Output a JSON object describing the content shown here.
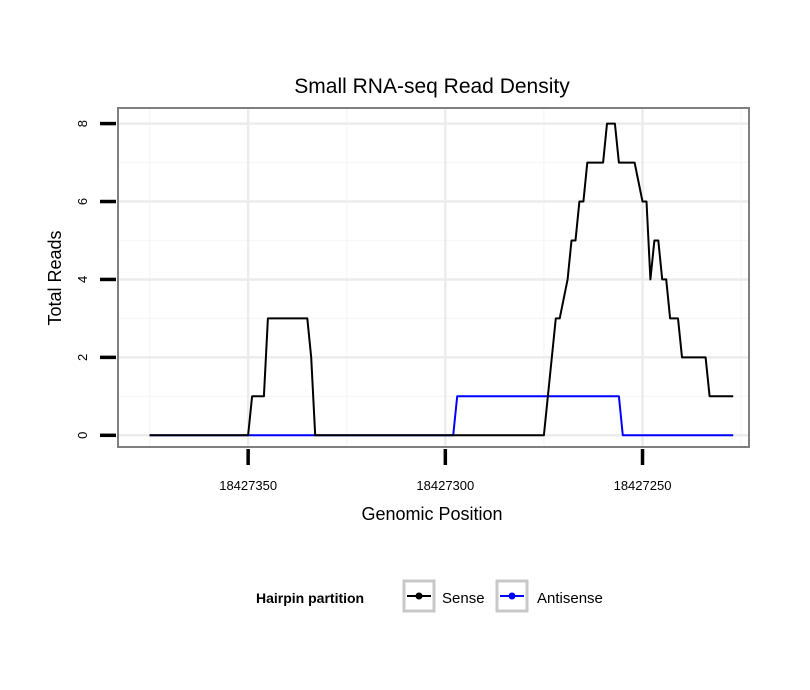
{
  "chart_data": {
    "type": "line",
    "title": "Small RNA-seq Read Density",
    "xlabel": "Genomic Position",
    "ylabel": "Total Reads",
    "x_reversed": true,
    "xlim": [
      18427383,
      18427223
    ],
    "ylim": [
      -0.3,
      8.4
    ],
    "x_ticks": [
      18427350,
      18427300,
      18427250
    ],
    "x_tick_labels": [
      "18427350",
      "18427300",
      "18427250"
    ],
    "y_ticks": [
      0,
      2,
      4,
      6,
      8
    ],
    "y_tick_labels": [
      "0",
      "2",
      "4",
      "6",
      "8"
    ],
    "grid": true,
    "legend": {
      "title": "Hairpin partition",
      "position": "bottom",
      "entries": [
        "Sense",
        "Antisense"
      ]
    },
    "series": [
      {
        "name": "Sense",
        "color": "#000000",
        "x": [
          18427375,
          18427350,
          18427349,
          18427346,
          18427345,
          18427335,
          18427334,
          18427333,
          18427300,
          18427275,
          18427272,
          18427271,
          18427269,
          18427268,
          18427267,
          18427266,
          18427265,
          18427264,
          18427260,
          18427259,
          18427257,
          18427256,
          18427254,
          18427253,
          18427252,
          18427250,
          18427249,
          18427248,
          18427247,
          18427246,
          18427245,
          18427244,
          18427243,
          18427242,
          18427241,
          18427240,
          18427239,
          18427238,
          18427235,
          18427234,
          18427233,
          18427232,
          18427227
        ],
        "values": [
          0,
          0,
          1,
          1,
          3,
          3,
          2,
          0,
          0,
          0,
          3,
          3,
          4,
          5,
          5,
          6,
          6,
          7,
          7,
          8,
          8,
          7,
          7,
          7,
          7,
          6,
          6,
          4,
          5,
          5,
          4,
          4,
          3,
          3,
          3,
          2,
          2,
          2,
          2,
          2,
          1,
          1,
          1
        ]
      },
      {
        "name": "Antisense",
        "color": "#0000ff",
        "x": [
          18427375,
          18427333,
          18427300,
          18427298,
          18427297,
          18427275,
          18427256,
          18427255,
          18427254,
          18427227
        ],
        "values": [
          0,
          0,
          0,
          0,
          1,
          1,
          1,
          0,
          0,
          0
        ]
      }
    ]
  }
}
